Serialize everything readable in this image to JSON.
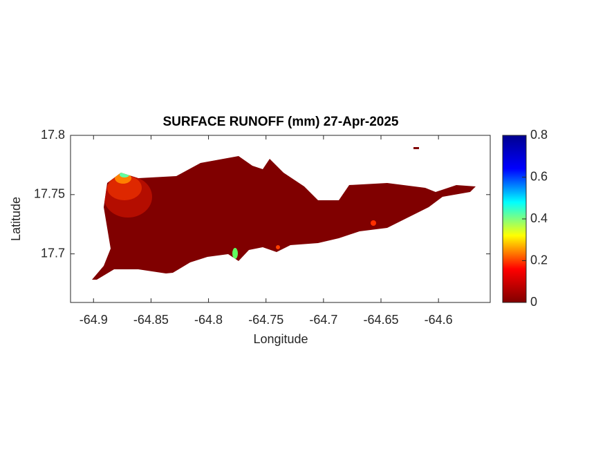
{
  "chart_data": {
    "type": "heatmap",
    "title": "SURFACE RUNOFF (mm) 27-Apr-2025",
    "xlabel": "Longitude",
    "ylabel": "Latitude",
    "xlim": [
      -64.92,
      -64.555
    ],
    "xticks": [
      -64.9,
      -64.85,
      -64.8,
      -64.75,
      -64.7,
      -64.65,
      -64.6
    ],
    "ylim": [
      17.659,
      17.8
    ],
    "yticks": [
      17.7,
      17.75,
      17.8
    ],
    "colormap": "jet",
    "clim": [
      0,
      0.8
    ],
    "cticks": [
      0,
      0.2,
      0.4,
      0.6,
      0.8
    ]
  }
}
